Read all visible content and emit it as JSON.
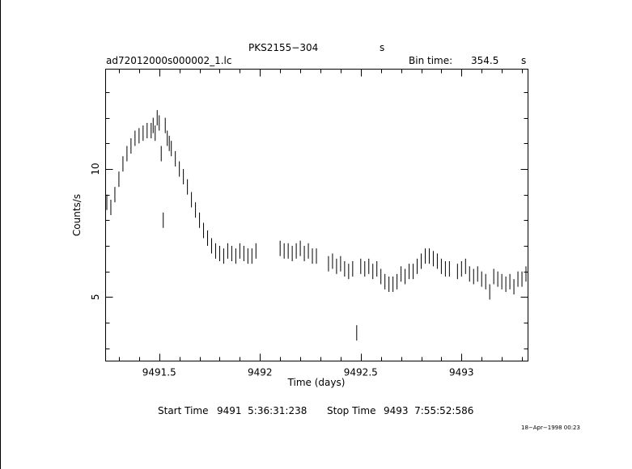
{
  "header": {
    "object": "PKS2155−304",
    "object_unit": "s",
    "filename": "ad72012000s000002_1.lc",
    "bin_label": "Bin time:",
    "bin_value": "354.5",
    "bin_unit": "s"
  },
  "footer": {
    "start_label": "Start Time",
    "start_value": "9491  5:36:31:238",
    "stop_label": "Stop Time",
    "stop_value": "9493  7:55:52:586",
    "timestamp": "18−Apr−1998 00:23"
  },
  "chart_data": {
    "type": "scatter",
    "xlabel": "Time (days)",
    "ylabel": "Counts/s",
    "xlim": [
      9491.234,
      9493.33
    ],
    "ylim": [
      2.5,
      13.9
    ],
    "xticks": [
      9491.5,
      9492,
      9492.5,
      9493
    ],
    "xtick_labels": [
      "9491.5",
      "9492",
      "9492.5",
      "9493"
    ],
    "yticks": [
      5,
      10
    ],
    "ytick_labels": [
      "5",
      "10"
    ],
    "grid": false,
    "error_bar_half_width": 0.3,
    "series": [
      {
        "x": [
          9491.24,
          9491.26,
          9491.28,
          9491.3,
          9491.32,
          9491.34,
          9491.36,
          9491.38,
          9491.4,
          9491.42,
          9491.44,
          9491.46,
          9491.47,
          9491.48,
          9491.49,
          9491.5,
          9491.51,
          9491.52,
          9491.53,
          9491.54,
          9491.55,
          9491.56,
          9491.58,
          9491.6,
          9491.62,
          9491.64,
          9491.66,
          9491.68,
          9491.7,
          9491.72,
          9491.74,
          9491.76,
          9491.78,
          9491.8,
          9491.82,
          9491.84,
          9491.86,
          9491.88,
          9491.9,
          9491.92,
          9491.94,
          9491.96,
          9491.98,
          9492.1,
          9492.12,
          9492.14,
          9492.16,
          9492.18,
          9492.2,
          9492.22,
          9492.24,
          9492.26,
          9492.28,
          9492.34,
          9492.36,
          9492.38,
          9492.4,
          9492.42,
          9492.44,
          9492.46,
          9492.48,
          9492.5,
          9492.52,
          9492.54,
          9492.56,
          9492.58,
          9492.6,
          9492.62,
          9492.64,
          9492.66,
          9492.68,
          9492.7,
          9492.72,
          9492.74,
          9492.76,
          9492.78,
          9492.8,
          9492.82,
          9492.84,
          9492.86,
          9492.88,
          9492.9,
          9492.92,
          9492.94,
          9492.98,
          9493.0,
          9493.02,
          9493.04,
          9493.06,
          9493.08,
          9493.1,
          9493.12,
          9493.14,
          9493.16,
          9493.18,
          9493.2,
          9493.22,
          9493.24,
          9493.26,
          9493.28,
          9493.3,
          9493.32
        ],
        "y": [
          8.7,
          8.5,
          9.0,
          9.6,
          10.2,
          10.6,
          10.9,
          11.2,
          11.3,
          11.4,
          11.5,
          11.5,
          11.7,
          11.4,
          12.0,
          11.8,
          10.6,
          8.0,
          11.7,
          11.2,
          11.0,
          10.8,
          10.4,
          10.0,
          9.7,
          9.3,
          8.8,
          8.4,
          8.0,
          7.6,
          7.3,
          7.0,
          6.8,
          6.7,
          6.6,
          6.8,
          6.7,
          6.6,
          6.8,
          6.7,
          6.6,
          6.6,
          6.8,
          6.9,
          6.8,
          6.8,
          6.7,
          6.8,
          6.9,
          6.7,
          6.8,
          6.6,
          6.6,
          6.3,
          6.4,
          6.2,
          6.3,
          6.1,
          6.0,
          6.1,
          3.6,
          6.2,
          6.1,
          6.2,
          6.0,
          6.1,
          5.8,
          5.6,
          5.5,
          5.5,
          5.6,
          5.9,
          5.8,
          6.0,
          6.0,
          6.2,
          6.4,
          6.6,
          6.6,
          6.5,
          6.4,
          6.2,
          6.1,
          6.1,
          6.0,
          6.1,
          6.2,
          5.9,
          5.8,
          5.9,
          5.7,
          5.6,
          5.2,
          5.8,
          5.7,
          5.6,
          5.5,
          5.6,
          5.4,
          5.7,
          5.7,
          5.9
        ]
      }
    ]
  }
}
